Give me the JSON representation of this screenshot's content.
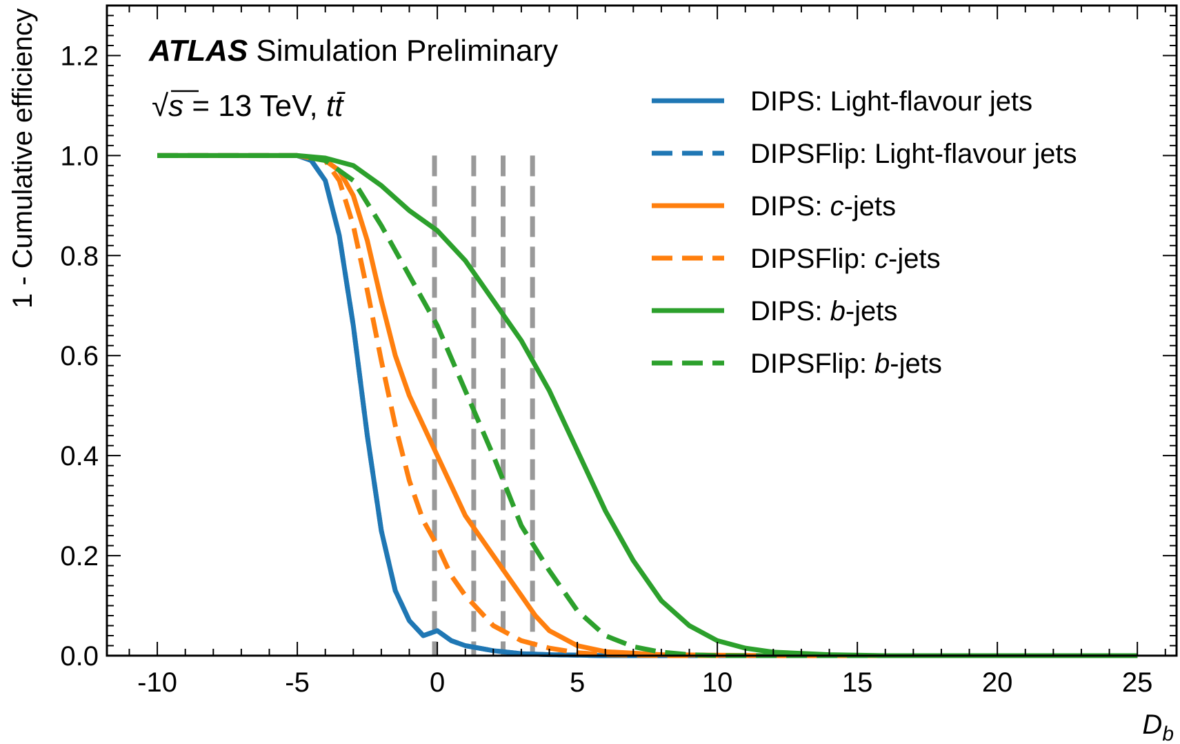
{
  "chart_data": {
    "type": "line",
    "annotation": {
      "experiment": "ATLAS",
      "status": "Simulation Preliminary",
      "energy_sqrt": "√",
      "energy_var": "s",
      "energy_text": " = 13 TeV, ",
      "process": "tt̄"
    },
    "xlabel": "D",
    "xlabel_sub": "b",
    "ylabel": "1 - Cumulative efficiency",
    "xlim": [
      -11.8,
      26.4
    ],
    "ylim": [
      0,
      1.3
    ],
    "x_ticks": [
      -10,
      -5,
      0,
      5,
      10,
      15,
      20,
      25
    ],
    "y_ticks": [
      0.0,
      0.2,
      0.4,
      0.6,
      0.8,
      1.0,
      1.2
    ],
    "x_tick_labels": [
      "-10",
      "-5",
      "0",
      "5",
      "10",
      "15",
      "20",
      "25"
    ],
    "y_tick_labels": [
      "0.0",
      "0.2",
      "0.4",
      "0.6",
      "0.8",
      "1.0",
      "1.2"
    ],
    "reference_lines_x": [
      -0.1,
      1.3,
      2.35,
      3.4
    ],
    "reference_line_color": "#999999",
    "grid": false,
    "legend_position": "top-right",
    "series": [
      {
        "name": "DIPS: Light-flavour jets",
        "prefix": "DIPS: ",
        "label": "Light-flavour jets",
        "italic": "",
        "color": "#1f77b4",
        "style": "solid",
        "x": [
          -10,
          -5,
          -4.5,
          -4,
          -3.5,
          -3,
          -2.5,
          -2,
          -1.5,
          -1,
          -0.5,
          0,
          0.5,
          1,
          2,
          3,
          4,
          5,
          6,
          25
        ],
        "y": [
          1.0,
          1.0,
          0.99,
          0.95,
          0.84,
          0.66,
          0.44,
          0.25,
          0.13,
          0.07,
          0.04,
          0.05,
          0.03,
          0.02,
          0.01,
          0.004,
          0.002,
          0.001,
          0.0,
          0.0
        ]
      },
      {
        "name": "DIPSFlip: Light-flavour jets",
        "prefix": "DIPSFlip: ",
        "label": "Light-flavour jets",
        "italic": "",
        "color": "#1f77b4",
        "style": "dashed",
        "x": [
          -10,
          -5,
          -4.5,
          -4,
          -3.5,
          -3,
          -2.5,
          -2,
          -1.5,
          -1,
          -0.5,
          0,
          0.5,
          1,
          2,
          3,
          4,
          5,
          6,
          25
        ],
        "y": [
          1.0,
          1.0,
          0.99,
          0.95,
          0.84,
          0.66,
          0.44,
          0.25,
          0.13,
          0.07,
          0.04,
          0.05,
          0.03,
          0.02,
          0.01,
          0.004,
          0.002,
          0.001,
          0.0,
          0.0
        ]
      },
      {
        "name": "DIPS: c-jets",
        "prefix": "DIPS: ",
        "label": "-jets",
        "italic": "c",
        "color": "#ff7f0e",
        "style": "solid",
        "x": [
          -10,
          -5,
          -4,
          -3.5,
          -3,
          -2.5,
          -2,
          -1.5,
          -1,
          -0.5,
          0,
          0.5,
          1,
          1.5,
          2,
          2.5,
          3,
          3.5,
          4,
          5,
          6,
          8,
          12,
          25
        ],
        "y": [
          1.0,
          1.0,
          0.99,
          0.97,
          0.92,
          0.83,
          0.71,
          0.6,
          0.52,
          0.46,
          0.4,
          0.34,
          0.28,
          0.24,
          0.2,
          0.16,
          0.12,
          0.08,
          0.05,
          0.02,
          0.008,
          0.002,
          0.0,
          0.0
        ]
      },
      {
        "name": "DIPSFlip: c-jets",
        "prefix": "DIPSFlip: ",
        "label": "-jets",
        "italic": "c",
        "color": "#ff7f0e",
        "style": "dashed",
        "x": [
          -10,
          -5,
          -4,
          -3.5,
          -3,
          -2.5,
          -2,
          -1.5,
          -1,
          -0.5,
          0,
          0.5,
          1,
          1.5,
          2,
          3,
          4,
          5,
          6,
          8,
          25
        ],
        "y": [
          1.0,
          1.0,
          0.99,
          0.95,
          0.86,
          0.73,
          0.59,
          0.46,
          0.35,
          0.27,
          0.22,
          0.16,
          0.12,
          0.09,
          0.06,
          0.03,
          0.015,
          0.006,
          0.002,
          0.0,
          0.0
        ]
      },
      {
        "name": "DIPS: b-jets",
        "prefix": "DIPS: ",
        "label": "-jets",
        "italic": "b",
        "color": "#2ca02c",
        "style": "solid",
        "x": [
          -10,
          -5,
          -4,
          -3,
          -2,
          -1,
          0,
          1,
          2,
          3,
          4,
          5,
          6,
          7,
          8,
          9,
          10,
          11,
          12,
          14,
          16,
          25
        ],
        "y": [
          1.0,
          1.0,
          0.995,
          0.98,
          0.94,
          0.89,
          0.85,
          0.79,
          0.71,
          0.63,
          0.53,
          0.41,
          0.29,
          0.19,
          0.11,
          0.06,
          0.03,
          0.015,
          0.007,
          0.002,
          0.0,
          0.0
        ]
      },
      {
        "name": "DIPSFlip: b-jets",
        "prefix": "DIPSFlip: ",
        "label": "-jets",
        "italic": "b",
        "color": "#2ca02c",
        "style": "dashed",
        "x": [
          -10,
          -5,
          -4,
          -3,
          -2,
          -1,
          0,
          1,
          2,
          3,
          4,
          5,
          6,
          7,
          8,
          9,
          10,
          25
        ],
        "y": [
          1.0,
          1.0,
          0.99,
          0.95,
          0.86,
          0.76,
          0.66,
          0.53,
          0.4,
          0.26,
          0.17,
          0.09,
          0.04,
          0.018,
          0.007,
          0.002,
          0.0,
          0.0
        ]
      }
    ]
  }
}
